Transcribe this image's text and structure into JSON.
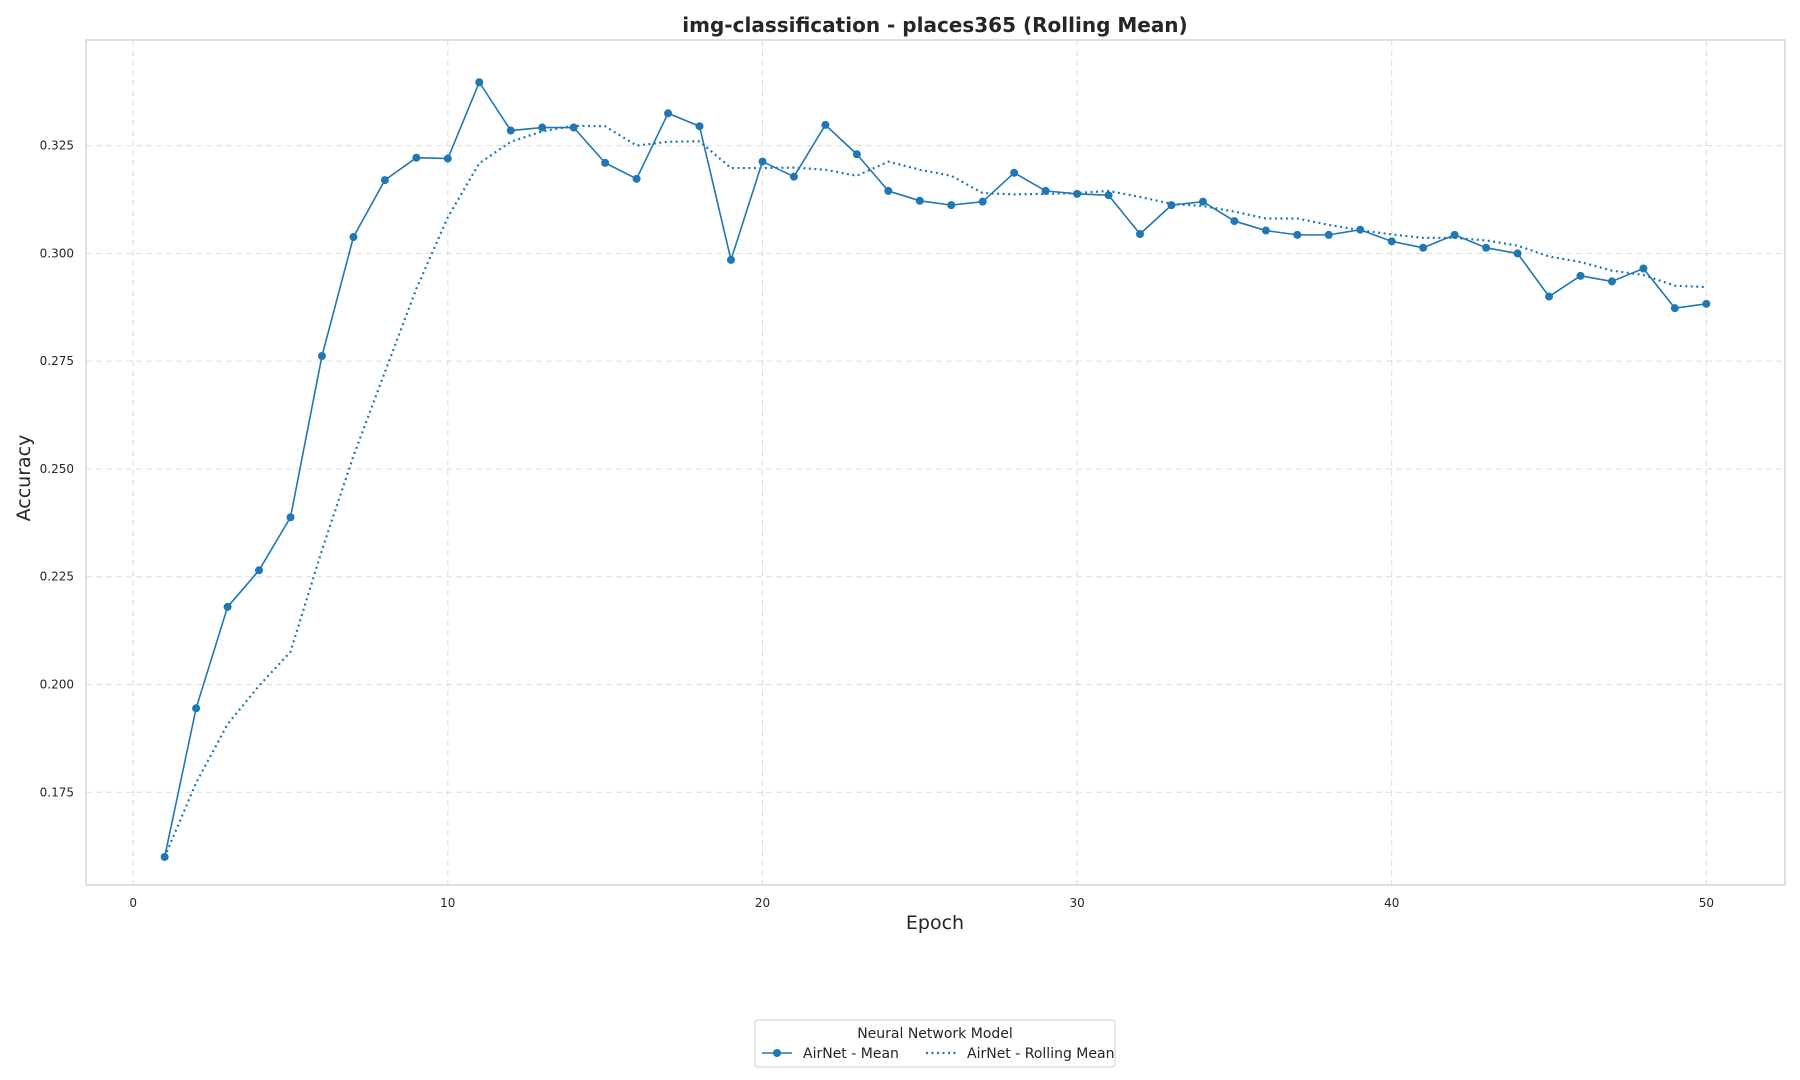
{
  "chart_data": {
    "type": "line",
    "title": "img-classification - places365 (Rolling Mean)",
    "xlabel": "Epoch",
    "ylabel": "Accuracy",
    "xlim": [
      -1.5,
      52.5
    ],
    "ylim": [
      0.1535,
      0.3495
    ],
    "xticks": [
      0,
      10,
      20,
      30,
      40,
      50
    ],
    "yticks": [
      0.175,
      0.2,
      0.225,
      0.25,
      0.275,
      0.3,
      0.325
    ],
    "ytick_labels": [
      "0.175",
      "0.200",
      "0.225",
      "0.250",
      "0.275",
      "0.300",
      "0.325"
    ],
    "grid": true,
    "legend": {
      "title": "Neural Network Model",
      "placement": "bottom-center, below plot"
    },
    "x": [
      1,
      2,
      3,
      4,
      5,
      6,
      7,
      8,
      9,
      10,
      11,
      12,
      13,
      14,
      15,
      16,
      17,
      18,
      19,
      20,
      21,
      22,
      23,
      24,
      25,
      26,
      27,
      28,
      29,
      30,
      31,
      32,
      33,
      34,
      35,
      36,
      37,
      38,
      39,
      40,
      41,
      42,
      43,
      44,
      45,
      46,
      47,
      48,
      49,
      50
    ],
    "series": [
      {
        "name": "AirNet - Mean",
        "style": "solid",
        "marker": "circle",
        "color": "#1f77b4",
        "values": [
          0.16,
          0.1945,
          0.218,
          0.2265,
          0.2388,
          0.2762,
          0.3038,
          0.317,
          0.3222,
          0.322,
          0.3397,
          0.3285,
          0.3292,
          0.3292,
          0.321,
          0.3173,
          0.3325,
          0.3295,
          0.2985,
          0.3213,
          0.3178,
          0.3298,
          0.323,
          0.3145,
          0.3122,
          0.3112,
          0.312,
          0.3187,
          0.3145,
          0.3138,
          0.3135,
          0.3045,
          0.3112,
          0.312,
          0.3075,
          0.3053,
          0.3043,
          0.3043,
          0.3055,
          0.3028,
          0.3013,
          0.3043,
          0.3013,
          0.3,
          0.29,
          0.2948,
          0.2935,
          0.2965,
          0.2873,
          0.2883
        ]
      },
      {
        "name": "AirNet - Rolling Mean",
        "style": "dotted",
        "marker": "none",
        "color": "#1f77b4",
        "values": [
          0.16,
          0.1772,
          0.1908,
          0.1997,
          0.2076,
          0.2312,
          0.253,
          0.2725,
          0.2918,
          0.3084,
          0.3209,
          0.3259,
          0.3283,
          0.3296,
          0.3295,
          0.325,
          0.3259,
          0.326,
          0.3198,
          0.3198,
          0.3199,
          0.3194,
          0.318,
          0.3213,
          0.3194,
          0.318,
          0.314,
          0.3137,
          0.3138,
          0.314,
          0.3145,
          0.3131,
          0.3115,
          0.311,
          0.3097,
          0.3081,
          0.3081,
          0.3066,
          0.3054,
          0.3044,
          0.3036,
          0.3036,
          0.303,
          0.3018,
          0.2993,
          0.298,
          0.296,
          0.295,
          0.2925,
          0.2922
        ]
      }
    ]
  }
}
